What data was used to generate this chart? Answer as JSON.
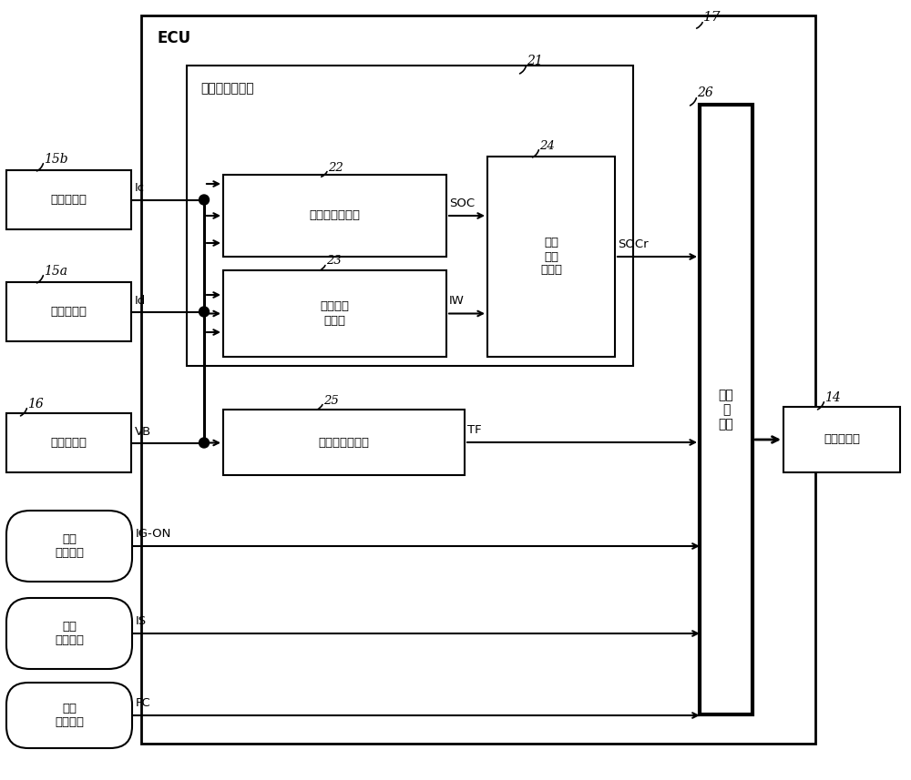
{
  "bg_color": "#ffffff",
  "fig_width": 10.0,
  "fig_height": 8.57,
  "texts": {
    "17": "17",
    "ecu": "ECU",
    "21": "21",
    "soc_calc": "蓄电状态计算部",
    "22": "22",
    "soc_judge": "蓄电状态判定部",
    "23": "23",
    "charge_accum": "放充电量\n累计部",
    "24": "24",
    "soc_id": "蓄电\n状态\n识别部",
    "25": "25",
    "terminal": "端子卸下检测部",
    "26": "26",
    "charge_ctrl": "充电\n控\n制部",
    "14": "14",
    "ac_gen": "交流发电机",
    "15b": "15b",
    "sensor_b": "电流传感器",
    "15a": "15a",
    "sensor_a": "电流传感器",
    "16": "16",
    "voltage": "电压传感器",
    "ignition": "点火\n开启信号",
    "idle": "怠速\n停止信号",
    "fuel": "燃料\n切断信号",
    "Ic": "Ic",
    "Id": "Id",
    "VB": "VB",
    "SOC": "SOC",
    "IW": "IW",
    "TF": "TF",
    "SOCr": "SOCr",
    "IG_ON": "IG-ON",
    "IS": "IS",
    "FC": "FC"
  }
}
